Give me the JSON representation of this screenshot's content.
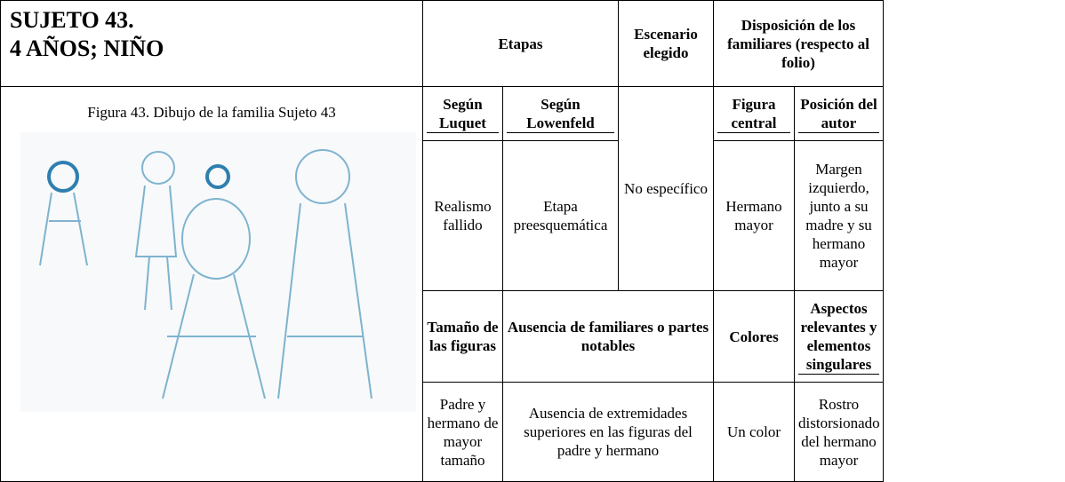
{
  "header": {
    "title_lines": [
      "SUJETO 43.",
      "4 AÑOS; NIÑO"
    ],
    "etapas": "Etapas",
    "escenario": "Escenario elegido",
    "disposicion": "Disposición de los familiares (respecto al folio)"
  },
  "figure": {
    "caption": "Figura 43. Dibujo de la familia Sujeto 43"
  },
  "table": {
    "rows": [
      [
        "Según Luquet",
        "Según Lowenfeld",
        "No específico",
        "Figura central",
        "Posición del autor"
      ],
      [
        "Realismo fallido",
        "Etapa preesquemática",
        "Hermano mayor",
        "Margen izquierdo, junto a su madre y su hermano mayor"
      ],
      [
        "Tamaño de las figuras",
        "Ausencia de familiares o partes notables",
        "Colores",
        "Aspectos relevantes y elementos singulares"
      ],
      [
        "Padre y hermano de mayor tamaño",
        "Ausencia de extremidades superiores en las figuras del padre y hermano",
        "Un color",
        "Rostro distorsionado del hermano mayor"
      ]
    ]
  }
}
